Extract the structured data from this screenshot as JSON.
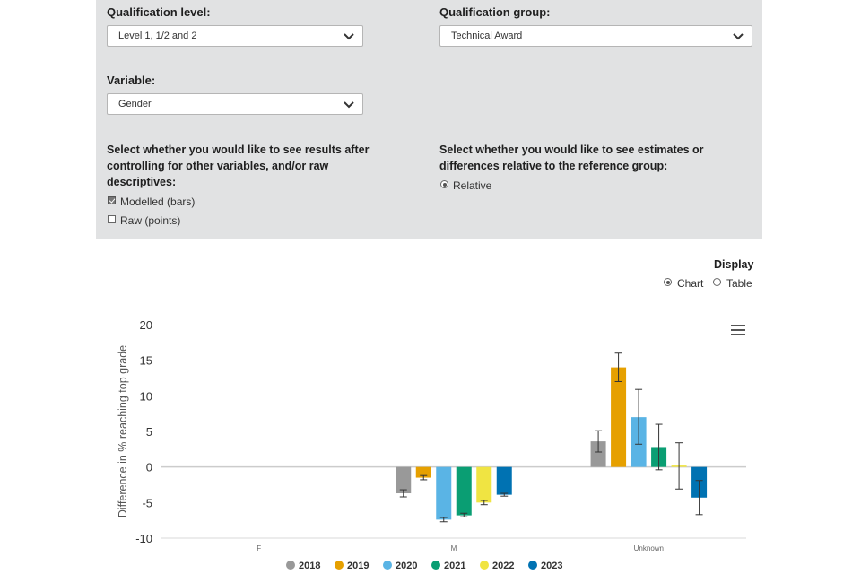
{
  "filters": {
    "qualification_level": {
      "label": "Qualification level:",
      "value": "Level 1, 1/2 and 2"
    },
    "qualification_group": {
      "label": "Qualification group:",
      "value": "Technical Award"
    },
    "variable": {
      "label": "Variable:",
      "value": "Gender"
    },
    "results_prompt": "Select whether you would like to see results after controlling for other variables, and/or raw descriptives:",
    "results_prompt_lines": [
      "Select whether you would like to see results after",
      "controlling for other variables, and/or raw",
      "descriptives:"
    ],
    "modelled": {
      "label": "Modelled (bars)",
      "checked": true
    },
    "raw": {
      "label": "Raw (points)",
      "checked": false
    },
    "estimates_prompt_lines": [
      "Select whether you would like to see estimates or",
      "differences relative to the reference group:"
    ],
    "relative": {
      "label": "Relative",
      "selected": true
    }
  },
  "display": {
    "label": "Display",
    "chart_option": "Chart",
    "table_option": "Table",
    "selected": "Chart"
  },
  "chart_data": {
    "type": "bar",
    "ylabel": "Difference in % reaching top grade",
    "xlabel": "",
    "ylim": [
      -10,
      20
    ],
    "yticks": [
      -10,
      -5,
      0,
      5,
      10,
      15,
      20
    ],
    "categories": [
      "F",
      "M",
      "Unknown"
    ],
    "legend_position": "bottom",
    "series": [
      {
        "name": "2018",
        "color": "#999999",
        "values": [
          null,
          -3.7,
          3.6
        ],
        "err_low": [
          null,
          -4.2,
          2.1
        ],
        "err_high": [
          null,
          -3.2,
          5.1
        ]
      },
      {
        "name": "2019",
        "color": "#e6a000",
        "values": [
          null,
          -1.5,
          14.0
        ],
        "err_low": [
          null,
          -1.8,
          12.0
        ],
        "err_high": [
          null,
          -1.2,
          16.0
        ]
      },
      {
        "name": "2020",
        "color": "#5ab4e5",
        "values": [
          null,
          -7.4,
          7.0
        ],
        "err_low": [
          null,
          -7.7,
          3.2
        ],
        "err_high": [
          null,
          -7.1,
          10.9
        ]
      },
      {
        "name": "2021",
        "color": "#0a9e73",
        "values": [
          null,
          -6.8,
          2.8
        ],
        "err_low": [
          null,
          -7.0,
          -0.4
        ],
        "err_high": [
          null,
          -6.5,
          6.0
        ]
      },
      {
        "name": "2022",
        "color": "#f0e442",
        "values": [
          null,
          -5.0,
          0.2
        ],
        "err_low": [
          null,
          -5.3,
          -3.1
        ],
        "err_high": [
          null,
          -4.7,
          3.4
        ]
      },
      {
        "name": "2023",
        "color": "#0072b2",
        "values": [
          null,
          -3.9,
          -4.3
        ],
        "err_low": [
          null,
          -4.1,
          -6.7
        ],
        "err_high": [
          null,
          -3.7,
          -1.9
        ]
      }
    ]
  }
}
